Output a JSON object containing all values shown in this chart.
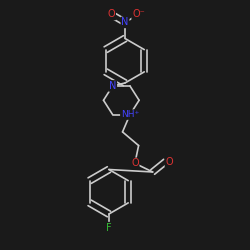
{
  "background_color": "#1a1a1a",
  "bond_color": "#cccccc",
  "bond_width": 1.2,
  "atom_colors": {
    "N": "#4444ff",
    "Nplus": "#4444ff",
    "O": "#dd3333",
    "F": "#33bb33",
    "C": "#cccccc"
  },
  "font_size": 6.5,
  "figsize": [
    2.5,
    2.5
  ],
  "dpi": 100
}
